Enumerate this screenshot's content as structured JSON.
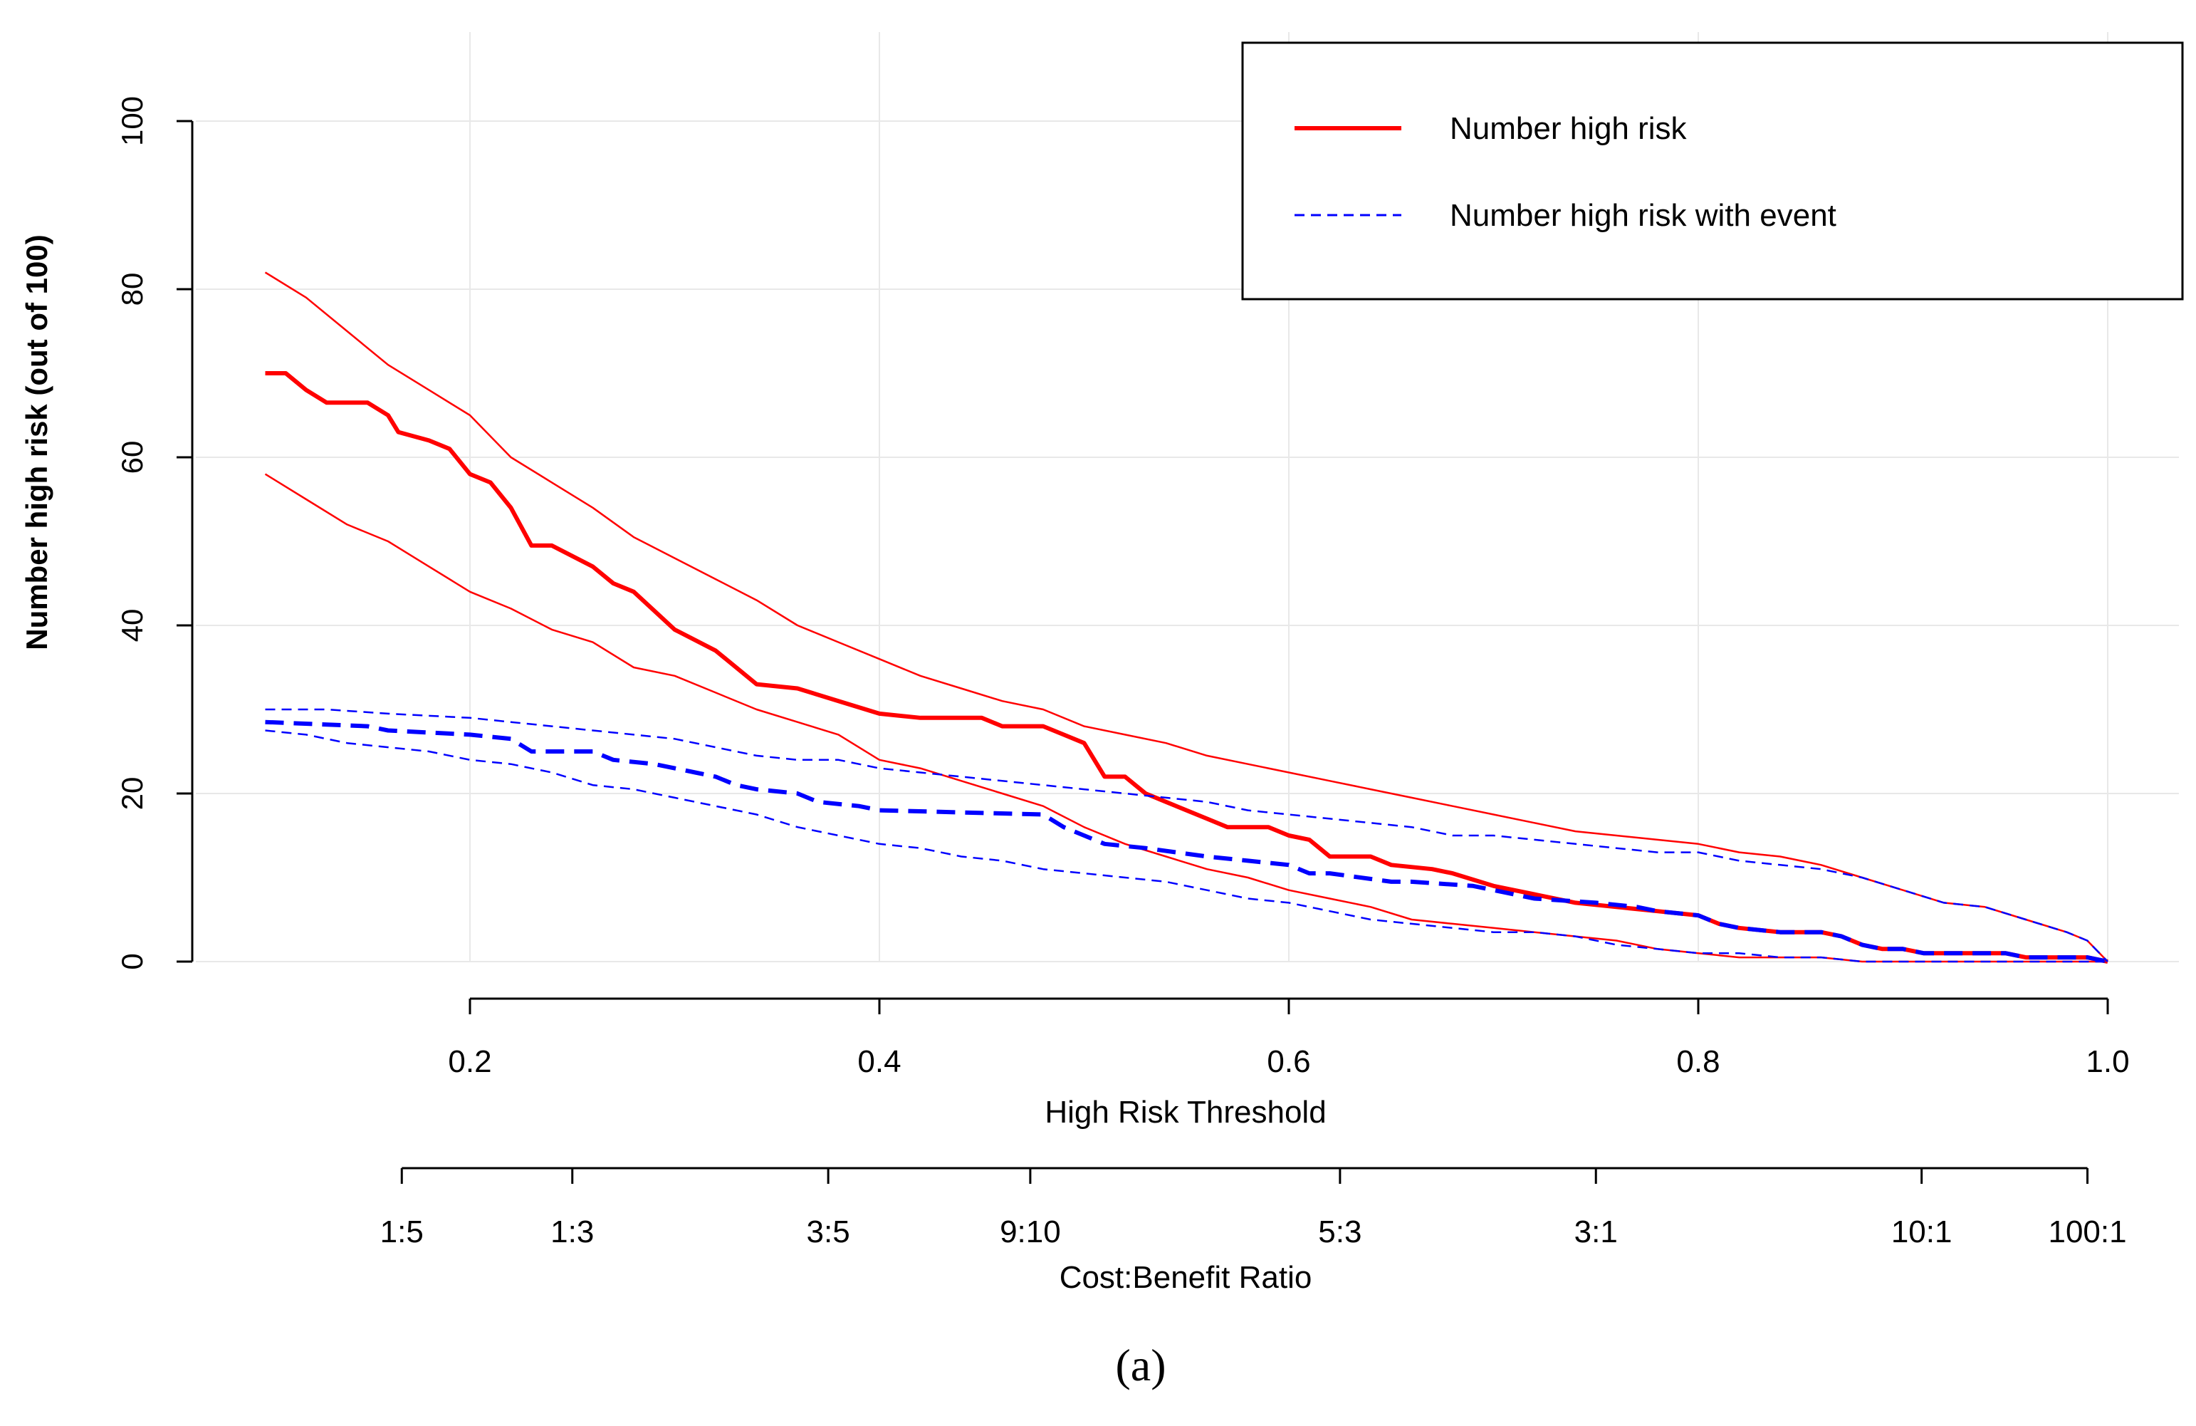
{
  "chart_data": {
    "type": "line",
    "title": "",
    "caption": "(a)",
    "xlabel": "High Risk Threshold",
    "ylabel": "Number high risk (out of 100)",
    "x2label": "Cost:Benefit Ratio",
    "xlim": [
      0.1,
      1.02
    ],
    "ylim": [
      0,
      100
    ],
    "grid": true,
    "legend_position": "top-right",
    "y_ticks": [
      0,
      20,
      40,
      60,
      80,
      100
    ],
    "y_tick_labels": [
      "0",
      "20",
      "40",
      "60",
      "80",
      "100"
    ],
    "x_ticks": [
      0.2,
      0.4,
      0.6,
      0.8,
      1.0
    ],
    "x_tick_labels": [
      "0.2",
      "0.4",
      "0.6",
      "0.8",
      "1.0"
    ],
    "x2_ticks": [
      0.1667,
      0.25,
      0.375,
      0.4737,
      0.625,
      0.75,
      0.9091,
      0.9901
    ],
    "x2_tick_labels": [
      "1:5",
      "1:3",
      "3:5",
      "9:10",
      "5:3",
      "3:1",
      "10:1",
      "100:1"
    ],
    "legend": [
      {
        "label": "Number high risk",
        "color": "#ff0000",
        "dash": "solid"
      },
      {
        "label": "Number high risk with event",
        "color": "#0000ff",
        "dash": "dashed"
      }
    ],
    "series": [
      {
        "name": "Number high risk",
        "role": "estimate",
        "color": "#ff0000",
        "dash": "solid",
        "weight": "thick",
        "x": [
          0.1,
          0.105,
          0.11,
          0.12,
          0.13,
          0.15,
          0.16,
          0.165,
          0.18,
          0.19,
          0.2,
          0.21,
          0.22,
          0.23,
          0.24,
          0.26,
          0.27,
          0.28,
          0.3,
          0.32,
          0.34,
          0.36,
          0.38,
          0.4,
          0.42,
          0.45,
          0.46,
          0.48,
          0.49,
          0.5,
          0.51,
          0.52,
          0.53,
          0.54,
          0.56,
          0.57,
          0.59,
          0.6,
          0.61,
          0.62,
          0.64,
          0.65,
          0.67,
          0.68,
          0.7,
          0.72,
          0.74,
          0.76,
          0.78,
          0.8,
          0.81,
          0.82,
          0.84,
          0.86,
          0.87,
          0.88,
          0.89,
          0.9,
          0.91,
          0.95,
          0.96,
          0.99,
          1.0
        ],
        "y": [
          70,
          70,
          70,
          68,
          66.5,
          66.5,
          65,
          63,
          62,
          61,
          58,
          57,
          54,
          49.5,
          49.5,
          47,
          45,
          44,
          39.5,
          37,
          33,
          32.5,
          31,
          29.5,
          29,
          29,
          28,
          28,
          27,
          26,
          22,
          22,
          20,
          19,
          17,
          16,
          16,
          15,
          14.5,
          12.5,
          12.5,
          11.5,
          11,
          10.5,
          9,
          8,
          7,
          6.5,
          6,
          5.5,
          4.5,
          4,
          3.5,
          3.5,
          3,
          2,
          1.5,
          1.5,
          1,
          1,
          0.5,
          0.5,
          0
        ]
      },
      {
        "name": "Number high risk",
        "role": "upper bound",
        "color": "#ff0000",
        "dash": "solid",
        "weight": "thin",
        "x": [
          0.1,
          0.12,
          0.14,
          0.16,
          0.18,
          0.2,
          0.22,
          0.24,
          0.26,
          0.28,
          0.3,
          0.32,
          0.34,
          0.36,
          0.38,
          0.4,
          0.42,
          0.44,
          0.46,
          0.48,
          0.5,
          0.52,
          0.54,
          0.56,
          0.58,
          0.6,
          0.62,
          0.64,
          0.66,
          0.68,
          0.7,
          0.72,
          0.74,
          0.76,
          0.78,
          0.8,
          0.82,
          0.84,
          0.86,
          0.88,
          0.9,
          0.92,
          0.94,
          0.96,
          0.98,
          0.99,
          1.0
        ],
        "y": [
          82,
          79,
          75,
          71,
          68,
          65,
          60,
          57,
          54,
          50.5,
          48,
          45.5,
          43,
          40,
          38,
          36,
          34,
          32.5,
          31,
          30,
          28,
          27,
          26,
          24.5,
          23.5,
          22.5,
          21.5,
          20.5,
          19.5,
          18.5,
          17.5,
          16.5,
          15.5,
          15,
          14.5,
          14,
          13,
          12.5,
          11.5,
          10,
          8.5,
          7,
          6.5,
          5,
          3.5,
          2.5,
          0
        ]
      },
      {
        "name": "Number high risk",
        "role": "lower bound",
        "color": "#ff0000",
        "dash": "solid",
        "weight": "thin",
        "x": [
          0.1,
          0.12,
          0.14,
          0.16,
          0.18,
          0.2,
          0.22,
          0.24,
          0.26,
          0.28,
          0.3,
          0.32,
          0.34,
          0.36,
          0.38,
          0.4,
          0.42,
          0.44,
          0.46,
          0.48,
          0.5,
          0.52,
          0.54,
          0.56,
          0.58,
          0.6,
          0.62,
          0.64,
          0.66,
          0.68,
          0.7,
          0.72,
          0.74,
          0.76,
          0.78,
          0.8,
          0.82,
          0.84,
          0.86,
          0.88,
          0.9,
          0.92,
          0.94,
          0.96,
          0.98,
          1.0
        ],
        "y": [
          58,
          55,
          52,
          50,
          47,
          44,
          42,
          39.5,
          38,
          35,
          34,
          32,
          30,
          28.5,
          27,
          24,
          23,
          21.5,
          20,
          18.5,
          16,
          14,
          12.5,
          11,
          10,
          8.5,
          7.5,
          6.5,
          5,
          4.5,
          4,
          3.5,
          3,
          2.5,
          1.5,
          1,
          0.5,
          0.5,
          0.5,
          0,
          0,
          0,
          0,
          0,
          0,
          0
        ]
      },
      {
        "name": "Number high risk with event",
        "role": "estimate",
        "color": "#0000ff",
        "dash": "dashed",
        "weight": "thick",
        "x": [
          0.1,
          0.15,
          0.16,
          0.2,
          0.22,
          0.23,
          0.26,
          0.27,
          0.29,
          0.3,
          0.31,
          0.32,
          0.33,
          0.34,
          0.36,
          0.37,
          0.39,
          0.4,
          0.48,
          0.49,
          0.5,
          0.51,
          0.53,
          0.56,
          0.58,
          0.6,
          0.61,
          0.62,
          0.65,
          0.66,
          0.69,
          0.7,
          0.71,
          0.72,
          0.75,
          0.77,
          0.78,
          0.8,
          0.81,
          0.82,
          0.84,
          0.86,
          0.87,
          0.88,
          0.89,
          0.9,
          0.91,
          0.95,
          0.96,
          0.99,
          1.0
        ],
        "y": [
          28.5,
          28,
          27.5,
          27,
          26.5,
          25,
          25,
          24,
          23.5,
          23,
          22.5,
          22,
          21,
          20.5,
          20,
          19,
          18.5,
          18,
          17.5,
          16,
          15,
          14,
          13.5,
          12.5,
          12,
          11.5,
          10.5,
          10.5,
          9.5,
          9.5,
          9,
          8.5,
          8,
          7.5,
          7,
          6.5,
          6,
          5.5,
          4.5,
          4,
          3.5,
          3.5,
          3,
          2,
          1.5,
          1.5,
          1,
          1,
          0.5,
          0.5,
          0
        ]
      },
      {
        "name": "Number high risk with event",
        "role": "upper bound",
        "color": "#0000ff",
        "dash": "dashed",
        "weight": "thin",
        "x": [
          0.1,
          0.13,
          0.16,
          0.2,
          0.22,
          0.24,
          0.26,
          0.28,
          0.3,
          0.32,
          0.34,
          0.36,
          0.38,
          0.4,
          0.42,
          0.44,
          0.46,
          0.48,
          0.5,
          0.52,
          0.54,
          0.56,
          0.58,
          0.6,
          0.62,
          0.64,
          0.66,
          0.68,
          0.7,
          0.72,
          0.74,
          0.76,
          0.78,
          0.8,
          0.82,
          0.84,
          0.86,
          0.88,
          0.9,
          0.92,
          0.94,
          0.96,
          0.98,
          0.99,
          1.0
        ],
        "y": [
          30,
          30,
          29.5,
          29,
          28.5,
          28,
          27.5,
          27,
          26.5,
          25.5,
          24.5,
          24,
          24,
          23,
          22.5,
          22,
          21.5,
          21,
          20.5,
          20,
          19.5,
          19,
          18,
          17.5,
          17,
          16.5,
          16,
          15,
          15,
          14.5,
          14,
          13.5,
          13,
          13,
          12,
          11.5,
          11,
          10,
          8.5,
          7,
          6.5,
          5,
          3.5,
          2.5,
          0
        ]
      },
      {
        "name": "Number high risk with event",
        "role": "lower bound",
        "color": "#0000ff",
        "dash": "dashed",
        "weight": "thin",
        "x": [
          0.1,
          0.12,
          0.14,
          0.16,
          0.18,
          0.2,
          0.22,
          0.24,
          0.26,
          0.28,
          0.3,
          0.32,
          0.34,
          0.36,
          0.38,
          0.4,
          0.42,
          0.44,
          0.46,
          0.48,
          0.5,
          0.52,
          0.54,
          0.56,
          0.58,
          0.6,
          0.62,
          0.64,
          0.66,
          0.68,
          0.7,
          0.72,
          0.74,
          0.76,
          0.78,
          0.8,
          0.82,
          0.84,
          0.86,
          0.88,
          0.9,
          1.0
        ],
        "y": [
          27.5,
          27,
          26,
          25.5,
          25,
          24,
          23.5,
          22.5,
          21,
          20.5,
          19.5,
          18.5,
          17.5,
          16,
          15,
          14,
          13.5,
          12.5,
          12,
          11,
          10.5,
          10,
          9.5,
          8.5,
          7.5,
          7,
          6,
          5,
          4.5,
          4,
          3.5,
          3.5,
          3,
          2,
          1.5,
          1,
          1,
          0.5,
          0.5,
          0,
          0,
          0
        ]
      }
    ]
  }
}
